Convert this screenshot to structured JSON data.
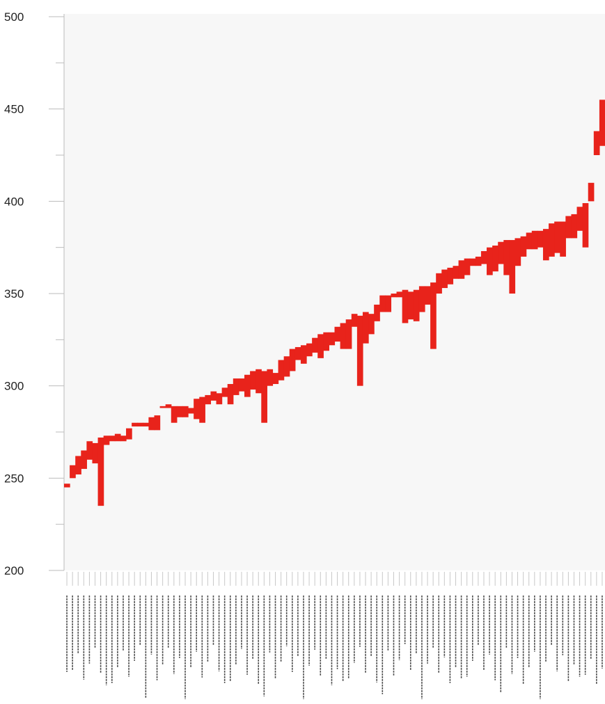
{
  "colors": {
    "bar": "#e8231b",
    "plot_background": "#f7f7f7",
    "axis": "#bbbbbb",
    "tick_text": "#222222"
  },
  "chart_data": {
    "type": "bar",
    "title": "",
    "xlabel": "",
    "ylabel": "",
    "ylim": [
      200,
      500
    ],
    "yticks": [
      200,
      250,
      300,
      350,
      400,
      450,
      500
    ],
    "grid": false,
    "legend": "none",
    "category_count": 96,
    "category_labels_legible": false,
    "note_values": "Each category shows a red floating bar spanning [low, high] in axis units; categories sorted by value, labels unreadable.",
    "ranges": [
      [
        245,
        247
      ],
      [
        250,
        257
      ],
      [
        252,
        262
      ],
      [
        255,
        265
      ],
      [
        260,
        270
      ],
      [
        258,
        269
      ],
      [
        235,
        272
      ],
      [
        268,
        273
      ],
      [
        270,
        273
      ],
      [
        270,
        274
      ],
      [
        270,
        273
      ],
      [
        271,
        277
      ],
      [
        278,
        280
      ],
      [
        278,
        280
      ],
      [
        278,
        280
      ],
      [
        276,
        283
      ],
      [
        276,
        284
      ],
      [
        288,
        289
      ],
      [
        288,
        290
      ],
      [
        280,
        289
      ],
      [
        283,
        289
      ],
      [
        283,
        289
      ],
      [
        285,
        288
      ],
      [
        282,
        293
      ],
      [
        280,
        294
      ],
      [
        290,
        295
      ],
      [
        292,
        297
      ],
      [
        290,
        296
      ],
      [
        294,
        299
      ],
      [
        290,
        301
      ],
      [
        295,
        304
      ],
      [
        297,
        304
      ],
      [
        294,
        306
      ],
      [
        298,
        308
      ],
      [
        296,
        309
      ],
      [
        280,
        308
      ],
      [
        300,
        309
      ],
      [
        301,
        307
      ],
      [
        303,
        314
      ],
      [
        305,
        316
      ],
      [
        308,
        320
      ],
      [
        314,
        321
      ],
      [
        312,
        322
      ],
      [
        316,
        323
      ],
      [
        318,
        326
      ],
      [
        315,
        328
      ],
      [
        319,
        329
      ],
      [
        322,
        329
      ],
      [
        324,
        332
      ],
      [
        320,
        334
      ],
      [
        320,
        336
      ],
      [
        332,
        339
      ],
      [
        300,
        338
      ],
      [
        323,
        340
      ],
      [
        328,
        339
      ],
      [
        335,
        344
      ],
      [
        340,
        349
      ],
      [
        340,
        349
      ],
      [
        348,
        350
      ],
      [
        348,
        351
      ],
      [
        334,
        352
      ],
      [
        336,
        351
      ],
      [
        335,
        352
      ],
      [
        340,
        354
      ],
      [
        344,
        354
      ],
      [
        320,
        356
      ],
      [
        350,
        361
      ],
      [
        353,
        363
      ],
      [
        355,
        364
      ],
      [
        358,
        365
      ],
      [
        358,
        368
      ],
      [
        360,
        369
      ],
      [
        365,
        369
      ],
      [
        365,
        370
      ],
      [
        366,
        373
      ],
      [
        360,
        375
      ],
      [
        362,
        376
      ],
      [
        366,
        378
      ],
      [
        360,
        379
      ],
      [
        350,
        379
      ],
      [
        365,
        380
      ],
      [
        370,
        381
      ],
      [
        374,
        383
      ],
      [
        374,
        384
      ],
      [
        375,
        384
      ],
      [
        368,
        385
      ],
      [
        370,
        388
      ],
      [
        372,
        389
      ],
      [
        370,
        389
      ],
      [
        380,
        392
      ],
      [
        380,
        393
      ],
      [
        384,
        397
      ],
      [
        375,
        399
      ],
      [
        400,
        410
      ],
      [
        425,
        438
      ],
      [
        430,
        455
      ]
    ]
  }
}
